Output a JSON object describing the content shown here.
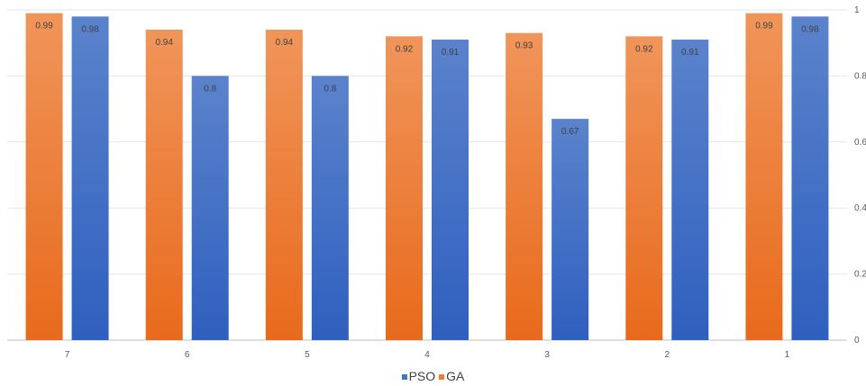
{
  "chart_data": {
    "type": "bar",
    "categories": [
      "7",
      "6",
      "5",
      "4",
      "3",
      "2",
      "1"
    ],
    "series": [
      {
        "name": "GA",
        "color": "#ED7D31",
        "values": [
          0.99,
          0.94,
          0.94,
          0.92,
          0.93,
          0.92,
          0.99
        ]
      },
      {
        "name": "PSO",
        "color": "#4472C4",
        "values": [
          0.98,
          0.8,
          0.8,
          0.91,
          0.67,
          0.91,
          0.98
        ]
      }
    ],
    "yticks": [
      "0",
      "0.2",
      "0.4",
      "0.6",
      "0.8",
      "1"
    ],
    "ylim": [
      0,
      1
    ],
    "y_axis_side": "right",
    "grid": true,
    "data_labels": true,
    "legend": {
      "position": "bottom",
      "order": [
        "PSO",
        "GA"
      ]
    }
  }
}
